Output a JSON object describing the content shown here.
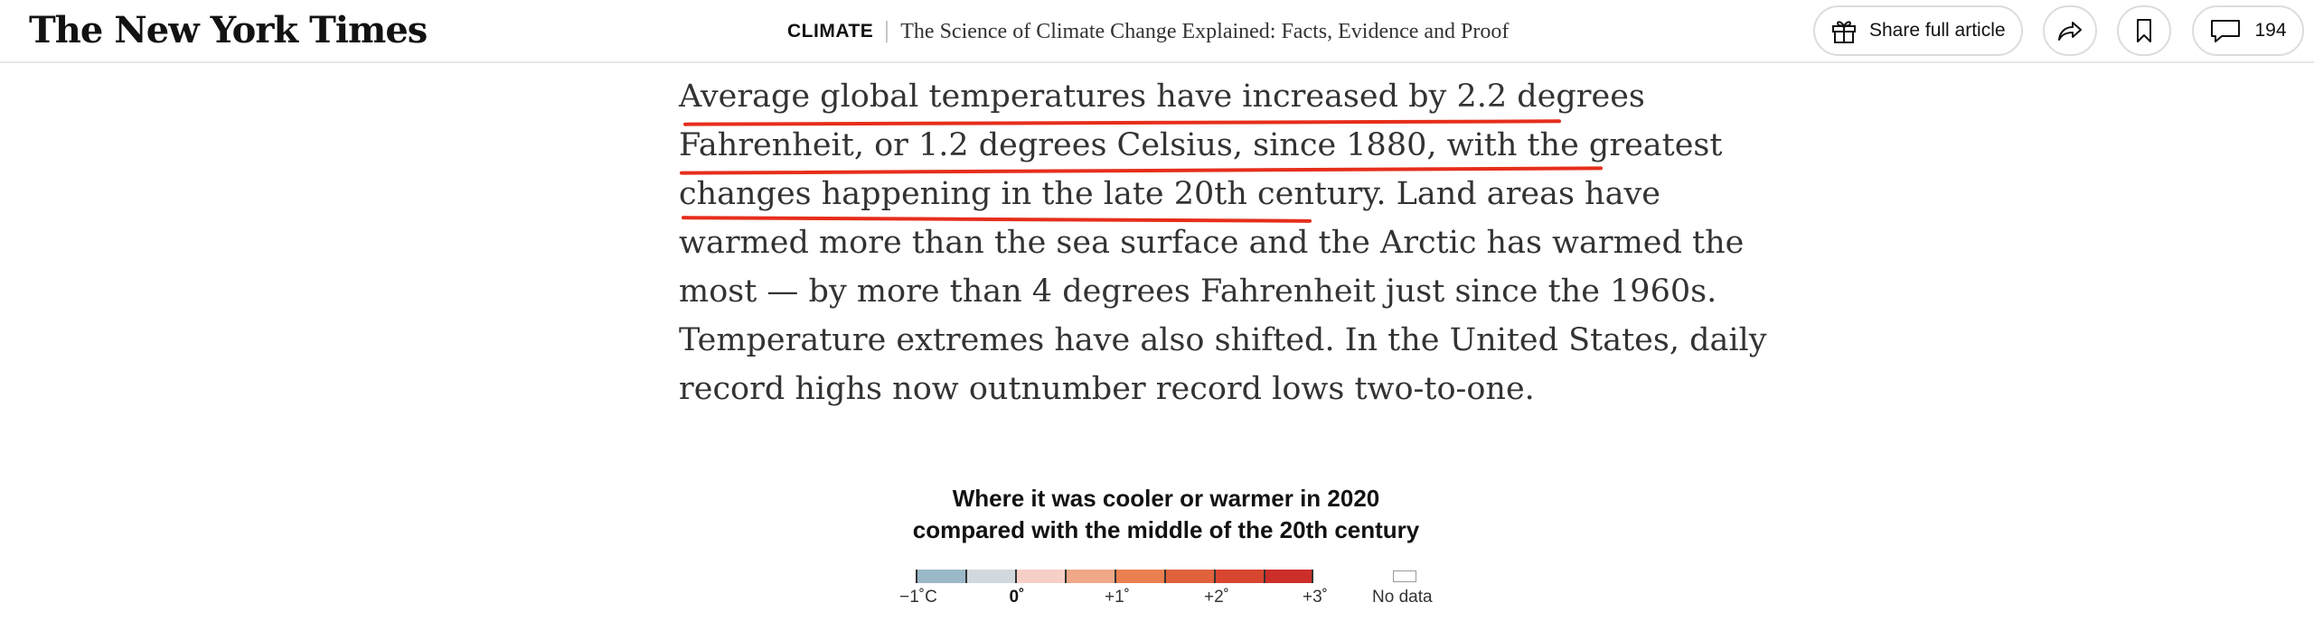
{
  "header": {
    "logo_text": "The New York Times",
    "section": "CLIMATE",
    "article_title": "The Science of Climate Change Explained: Facts, Evidence and Proof",
    "share_label": "Share full article",
    "comments_count": "194",
    "icons": [
      "gift-icon",
      "share-forward-icon",
      "bookmark-icon",
      "comment-icon"
    ]
  },
  "article": {
    "lines": [
      "Average global temperatures have increased by 2.2 degrees",
      "Fahrenheit, or 1.2 degrees Celsius, since 1880, with the greatest",
      "changes happening in the late 20th century. Land areas have",
      "warmed more than the sea surface and the Arctic has warmed the",
      "most — by more than 4 degrees Fahrenheit just since the 1960s.",
      "Temperature extremes have also shifted. In the United States, daily",
      "record highs now outnumber record lows two-to-one."
    ],
    "highlight_color": "#e62e1b"
  },
  "legend": {
    "title_line1": "Where it was cooler or warmer in 2020",
    "title_line2": "compared with the middle of the 20th century",
    "colors": [
      "#9ab8c8",
      "#d2d9de",
      "#f6cfc6",
      "#f0a888",
      "#ea8050",
      "#e0623c",
      "#d84630",
      "#cc2f2a"
    ],
    "ticks": [
      "−1˚C",
      "0˚",
      "+1˚",
      "+2˚",
      "+3˚"
    ],
    "no_data_label": "No data"
  }
}
